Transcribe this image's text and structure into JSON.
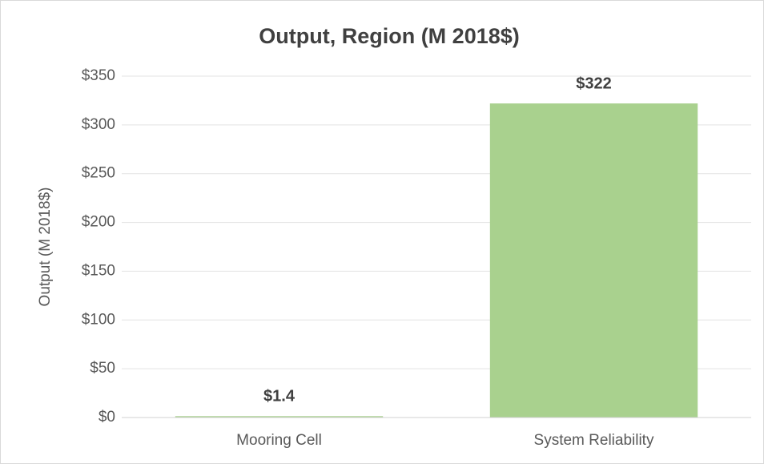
{
  "chart_data": {
    "type": "bar",
    "title": "Output, Region (M 2018$)",
    "y_label": "Output (M 2018$)",
    "categories": [
      "Mooring Cell",
      "System Reliability"
    ],
    "values": [
      1.4,
      322
    ],
    "value_labels": [
      "$1.4",
      "$322"
    ],
    "color": "#a9d18e",
    "ylim": [
      0,
      350
    ],
    "yticks": [
      {
        "value": 0,
        "label": "$0"
      },
      {
        "value": 50,
        "label": "$50"
      },
      {
        "value": 100,
        "label": "$100"
      },
      {
        "value": 150,
        "label": "$150"
      },
      {
        "value": 200,
        "label": "$200"
      },
      {
        "value": 250,
        "label": "$250"
      },
      {
        "value": 300,
        "label": "$300"
      },
      {
        "value": 350,
        "label": "$350"
      }
    ],
    "grid": true
  }
}
